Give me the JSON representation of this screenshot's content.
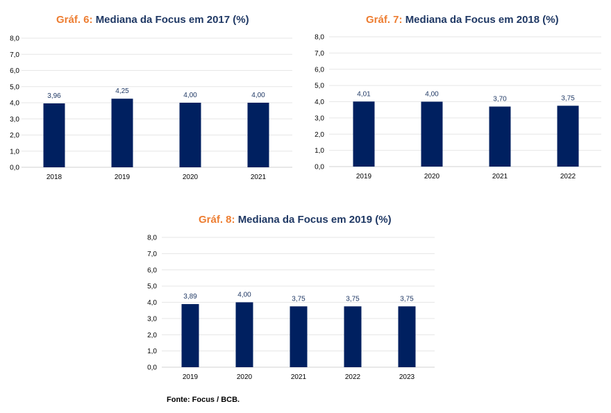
{
  "colors": {
    "bar": "#002060",
    "title_prefix": "#ED7D31",
    "title_main": "#1F3864",
    "grid": "#e6e6e6",
    "axis": "#d0d0d0"
  },
  "source": "Fonte: Focus / BCB.",
  "chart_data": [
    {
      "type": "bar",
      "title_prefix": "Gráf. 6:",
      "title": "Mediana da Focus em 2017 (%)",
      "categories": [
        "2018",
        "2019",
        "2020",
        "2021"
      ],
      "values": [
        3.96,
        4.25,
        4.0,
        4.0
      ],
      "value_labels": [
        "3,96",
        "4,25",
        "4,00",
        "4,00"
      ],
      "ylim": [
        0,
        8
      ],
      "yticks": [
        "0,0",
        "1,0",
        "2,0",
        "3,0",
        "4,0",
        "5,0",
        "6,0",
        "7,0",
        "8,0"
      ],
      "grid": true,
      "xlabel": "",
      "ylabel": ""
    },
    {
      "type": "bar",
      "title_prefix": "Gráf. 7:",
      "title": "Mediana da Focus em 2018 (%)",
      "categories": [
        "2019",
        "2020",
        "2021",
        "2022"
      ],
      "values": [
        4.01,
        4.0,
        3.7,
        3.75
      ],
      "value_labels": [
        "4,01",
        "4,00",
        "3,70",
        "3,75"
      ],
      "ylim": [
        0,
        8
      ],
      "yticks": [
        "0,0",
        "1,0",
        "2,0",
        "3,0",
        "4,0",
        "5,0",
        "6,0",
        "7,0",
        "8,0"
      ],
      "grid": true,
      "xlabel": "",
      "ylabel": ""
    },
    {
      "type": "bar",
      "title_prefix": "Gráf. 8:",
      "title": "Mediana da Focus em 2019 (%)",
      "categories": [
        "2019",
        "2020",
        "2021",
        "2022",
        "2023"
      ],
      "values": [
        3.89,
        4.0,
        3.75,
        3.75,
        3.75
      ],
      "value_labels": [
        "3,89",
        "4,00",
        "3,75",
        "3,75",
        "3,75"
      ],
      "ylim": [
        0,
        8
      ],
      "yticks": [
        "0,0",
        "1,0",
        "2,0",
        "3,0",
        "4,0",
        "5,0",
        "6,0",
        "7,0",
        "8,0"
      ],
      "grid": true,
      "xlabel": "",
      "ylabel": ""
    }
  ]
}
